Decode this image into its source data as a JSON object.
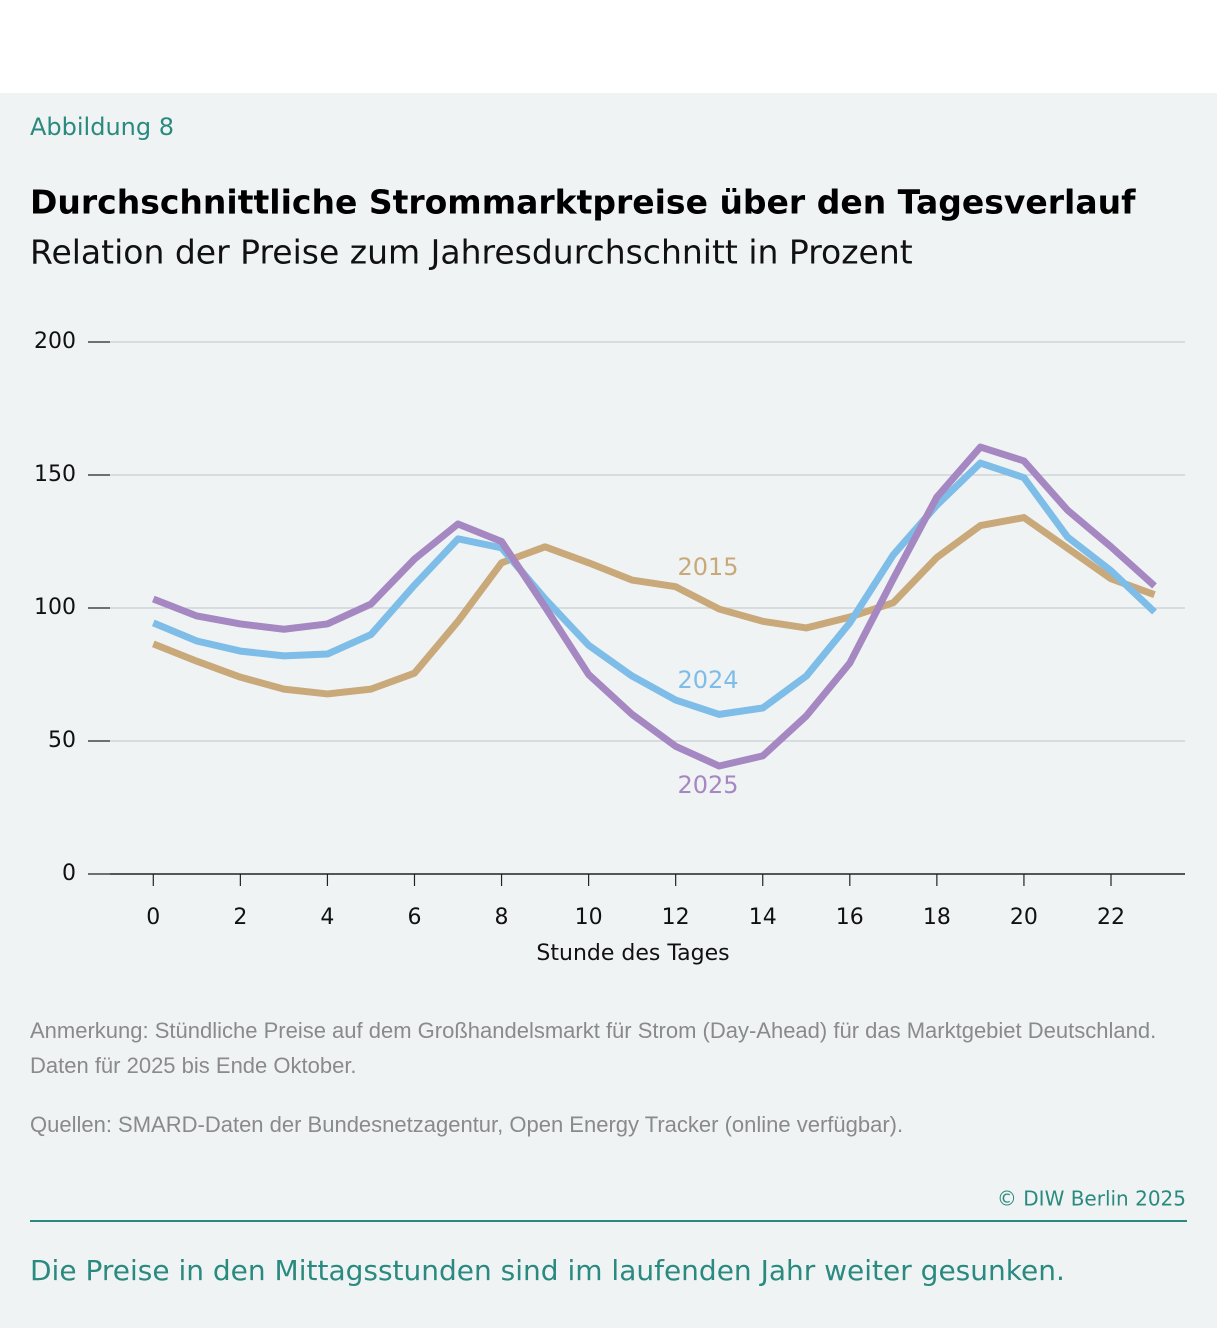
{
  "figure_label": "Abbildung 8",
  "chart_data": {
    "type": "line",
    "title": "Durchschnittliche Strommarktpreise über den Tagesverlauf",
    "subtitle": "Relation der Preise zum Jahresdurchschnitt in Prozent",
    "xlabel": "Stunde des Tages",
    "x": [
      0,
      1,
      2,
      3,
      4,
      5,
      6,
      7,
      8,
      9,
      10,
      11,
      12,
      13,
      14,
      15,
      16,
      17,
      18,
      19,
      20,
      21,
      22,
      23
    ],
    "series": [
      {
        "name": "2015",
        "color": "#c9a97a",
        "values": [
          86.5,
          80,
          74,
          69.5,
          67.7,
          69.5,
          75.5,
          95,
          117,
          123,
          117,
          110.5,
          108,
          99.6,
          95,
          92.5,
          96.6,
          102,
          119,
          131,
          134,
          122.5,
          111,
          105
        ]
      },
      {
        "name": "2024",
        "color": "#7dbde8",
        "values": [
          94.4,
          87.6,
          83.8,
          82,
          82.7,
          90,
          108.6,
          126,
          122.6,
          103.4,
          86,
          74.4,
          65.4,
          60,
          62.4,
          74.4,
          94.4,
          120,
          138.7,
          154.5,
          149,
          126.7,
          114,
          98.5
        ]
      },
      {
        "name": "2025",
        "color": "#a587c2",
        "values": [
          103.4,
          97,
          94,
          92,
          94,
          101.5,
          118.4,
          131.6,
          125,
          100.4,
          75,
          60,
          48,
          40.6,
          44.4,
          59.4,
          79.3,
          111,
          141.7,
          160.5,
          155.3,
          136.8,
          123,
          108.3
        ]
      }
    ],
    "xlim": [
      -1.5,
      23.7
    ],
    "xticks": [
      0,
      2,
      4,
      6,
      8,
      10,
      12,
      14,
      16,
      18,
      20,
      22
    ],
    "ylim": [
      0,
      200
    ],
    "yticks": [
      0,
      50,
      100,
      150,
      200
    ],
    "grid": true
  },
  "notes": [
    "Anmerkung: Stündliche Preise auf dem Großhandelsmarkt für Strom (Day-Ahead) für das Marktgebiet Deutschland.",
    "Daten für 2025 bis Ende Oktober."
  ],
  "source": "Quellen: SMARD-Daten der Bundesnetzagentur, Open Energy Tracker (online verfügbar).",
  "copyright": "© DIW Berlin 2025",
  "summary": "Die Preise in den Mittagsstunden sind im laufenden Jahr weiter gesunken."
}
